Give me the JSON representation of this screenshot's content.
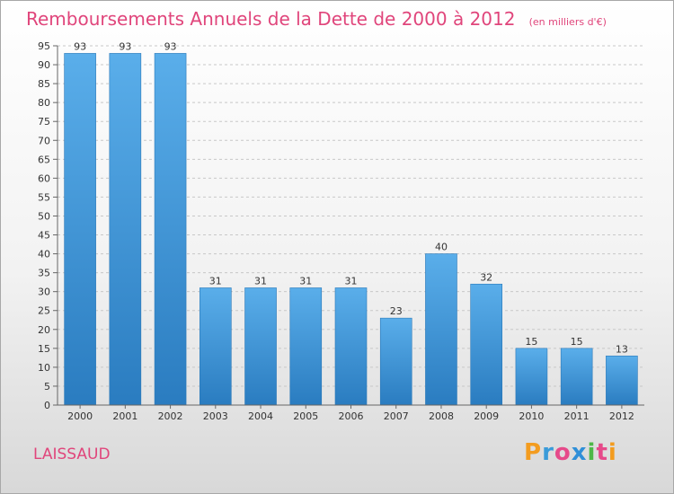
{
  "title": "Remboursements Annuels de la Dette de 2000 à 2012",
  "unit_note": "(en milliers d'€)",
  "commune": "LAISSAUD",
  "logo": {
    "text": "Proxiti",
    "letters": [
      {
        "char": "P",
        "color": "#f39c1f"
      },
      {
        "char": "r",
        "color": "#3a9bd9"
      },
      {
        "char": "o",
        "color": "#e64a8a"
      },
      {
        "char": "x",
        "color": "#2f8fd8"
      },
      {
        "char": "i",
        "color": "#4db848"
      },
      {
        "char": "t",
        "color": "#e64a8a"
      },
      {
        "char": "i",
        "color": "#f39c1f"
      }
    ]
  },
  "colors": {
    "title": "#e0457b",
    "bar_top": "#5aaeea",
    "bar_bottom": "#2a7cc0",
    "grid": "#c8c8c8",
    "axis": "#666666"
  },
  "chart_data": {
    "type": "bar",
    "categories": [
      "2000",
      "2001",
      "2002",
      "2003",
      "2004",
      "2005",
      "2006",
      "2007",
      "2008",
      "2009",
      "2010",
      "2011",
      "2012"
    ],
    "values": [
      93,
      93,
      93,
      31,
      31,
      31,
      31,
      23,
      40,
      32,
      15,
      15,
      13
    ],
    "ylim": [
      0,
      95
    ],
    "yticks": [
      0,
      5,
      10,
      15,
      20,
      25,
      30,
      35,
      40,
      45,
      50,
      55,
      60,
      65,
      70,
      75,
      80,
      85,
      90,
      95
    ],
    "grid": true,
    "data_labels": true,
    "legend": "none"
  }
}
